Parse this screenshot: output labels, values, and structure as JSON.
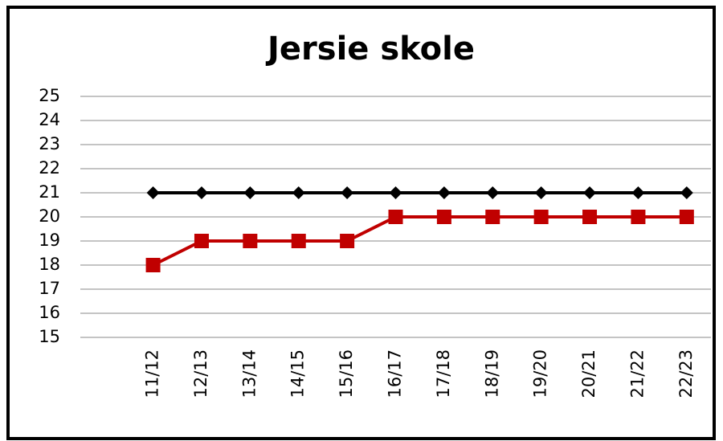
{
  "chart_data": {
    "type": "line",
    "title": "Jersie skole",
    "categories": [
      null,
      "11/12",
      "12/13",
      "13/14",
      "14/15",
      "15/16",
      "16/17",
      "17/18",
      "18/19",
      "19/20",
      "20/21",
      "21/22",
      "22/23"
    ],
    "series": [
      {
        "color": "#000000",
        "marker": "diamond",
        "values": [
          null,
          21,
          21,
          21,
          21,
          21,
          21,
          21,
          21,
          21,
          21,
          21,
          21
        ]
      },
      {
        "color": "#c00000",
        "marker": "square",
        "values": [
          null,
          18,
          19,
          19,
          19,
          19,
          20,
          20,
          20,
          20,
          20,
          20,
          20
        ]
      }
    ],
    "ylim": [
      15,
      25
    ],
    "yticks": [
      15,
      16,
      17,
      18,
      19,
      20,
      21,
      22,
      23,
      24,
      25
    ],
    "grid": true
  }
}
